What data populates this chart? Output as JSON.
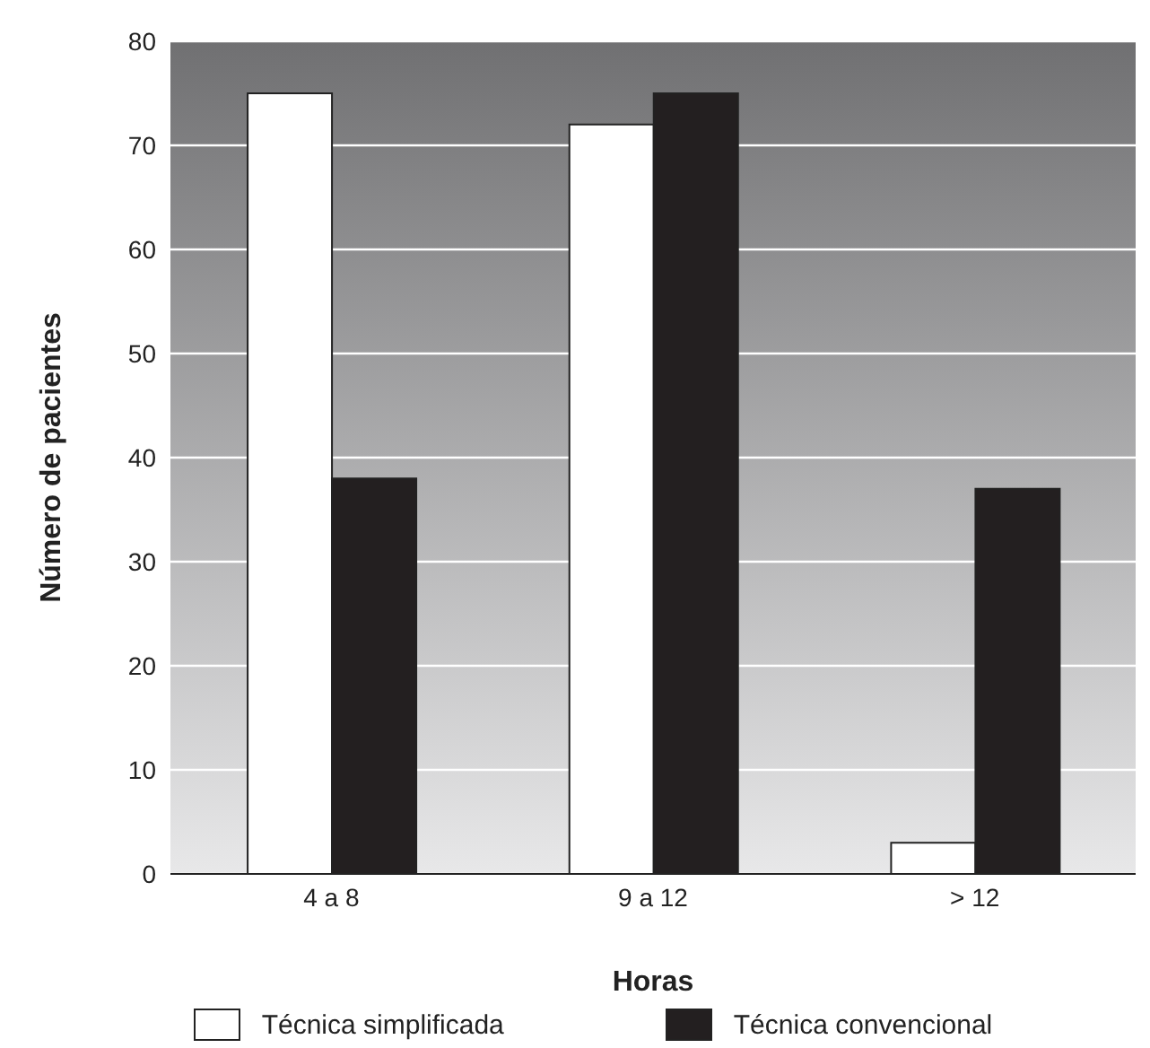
{
  "chart_data": {
    "type": "bar",
    "xlabel": "Horas",
    "ylabel": "Número de pacientes",
    "categories": [
      "4 a 8",
      "9 a 12",
      "> 12"
    ],
    "series": [
      {
        "name": "Técnica simplificada",
        "color": "#ffffff",
        "values": [
          75,
          72,
          3
        ]
      },
      {
        "name": "Técnica convencional",
        "color": "#231f20",
        "values": [
          38,
          75,
          37
        ]
      }
    ],
    "ylim": [
      0,
      80
    ],
    "yticks": [
      0,
      10,
      20,
      30,
      40,
      50,
      60,
      70,
      80
    ],
    "grid": "y",
    "legend": "bottom"
  }
}
